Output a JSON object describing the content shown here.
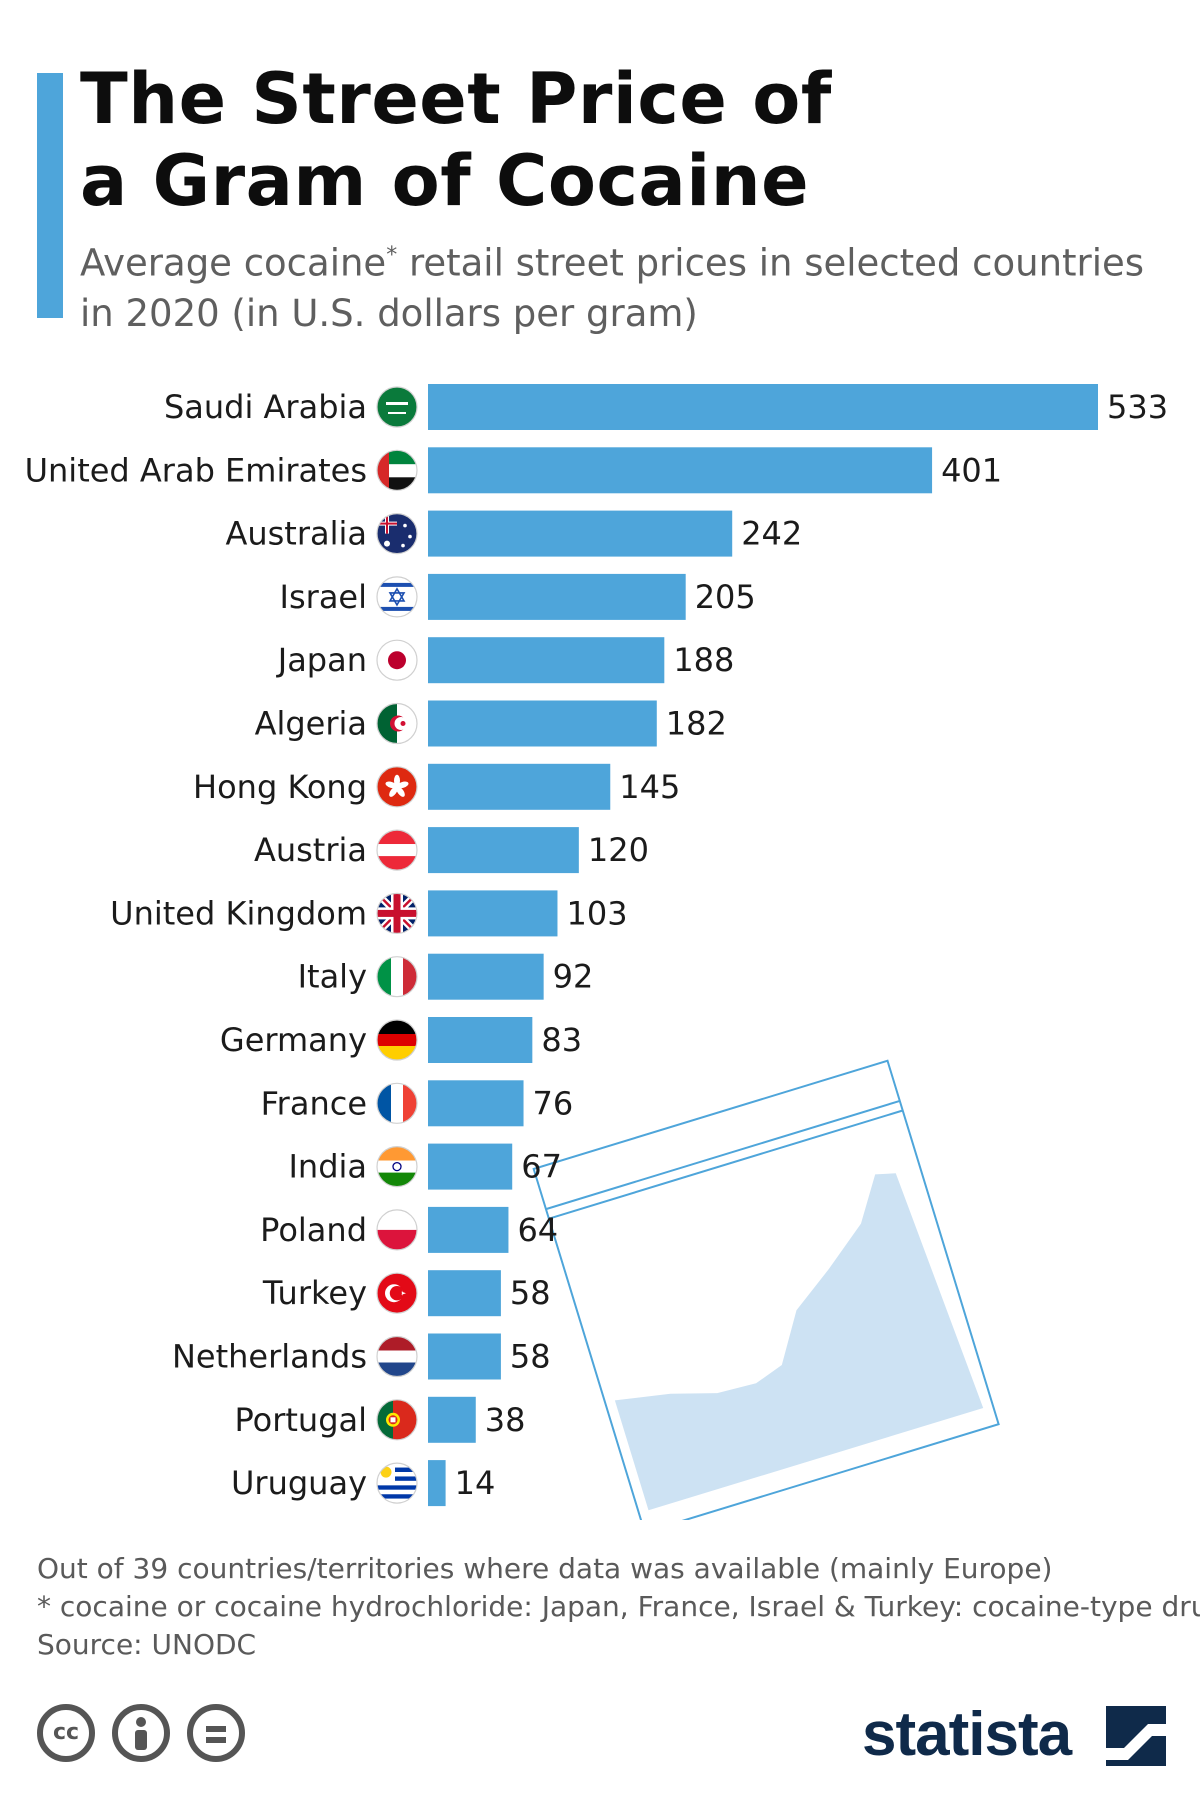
{
  "header": {
    "title_line1": "The Street Price of",
    "title_line2": "a Gram of Cocaine",
    "subtitle_part1": "Average cocaine",
    "subtitle_asterisk": "*",
    "subtitle_part2": " retail street prices in selected countries",
    "subtitle_line2": "in 2020 (in U.S. dollars per gram)"
  },
  "colors": {
    "accent": "#4ea5da",
    "bar": "#4ea5da",
    "brand": "#0f2a4a",
    "bag": "#cde2f3"
  },
  "chart_data": {
    "type": "bar",
    "orientation": "horizontal",
    "categories": [
      "Saudi Arabia",
      "United Arab Emirates",
      "Australia",
      "Israel",
      "Japan",
      "Algeria",
      "Hong Kong",
      "Austria",
      "United Kingdom",
      "Italy",
      "Germany",
      "France",
      "India",
      "Poland",
      "Turkey",
      "Netherlands",
      "Portugal",
      "Uruguay"
    ],
    "values": [
      533,
      401,
      242,
      205,
      188,
      182,
      145,
      120,
      103,
      92,
      83,
      76,
      67,
      64,
      58,
      58,
      38,
      14
    ],
    "title": "The Street Price of a Gram of Cocaine",
    "unit": "U.S. dollars per gram",
    "data_labels": true,
    "grid": false,
    "flags": [
      "saudi-arabia-flag",
      "uae-flag",
      "australia-flag",
      "israel-flag",
      "japan-flag",
      "algeria-flag",
      "hong-kong-flag",
      "austria-flag",
      "uk-flag",
      "italy-flag",
      "germany-flag",
      "france-flag",
      "india-flag",
      "poland-flag",
      "turkey-flag",
      "netherlands-flag",
      "portugal-flag",
      "uruguay-flag"
    ]
  },
  "footer": {
    "note1": "Out of 39 countries/territories where data was available (mainly Europe)",
    "note2": "* cocaine or cocaine hydrochloride: Japan, France, Israel & Turkey: cocaine-type drugs",
    "source": "Source: UNODC",
    "brand": "statista",
    "license_icons": [
      "cc-icon",
      "attribution-icon",
      "no-derivatives-icon"
    ]
  }
}
